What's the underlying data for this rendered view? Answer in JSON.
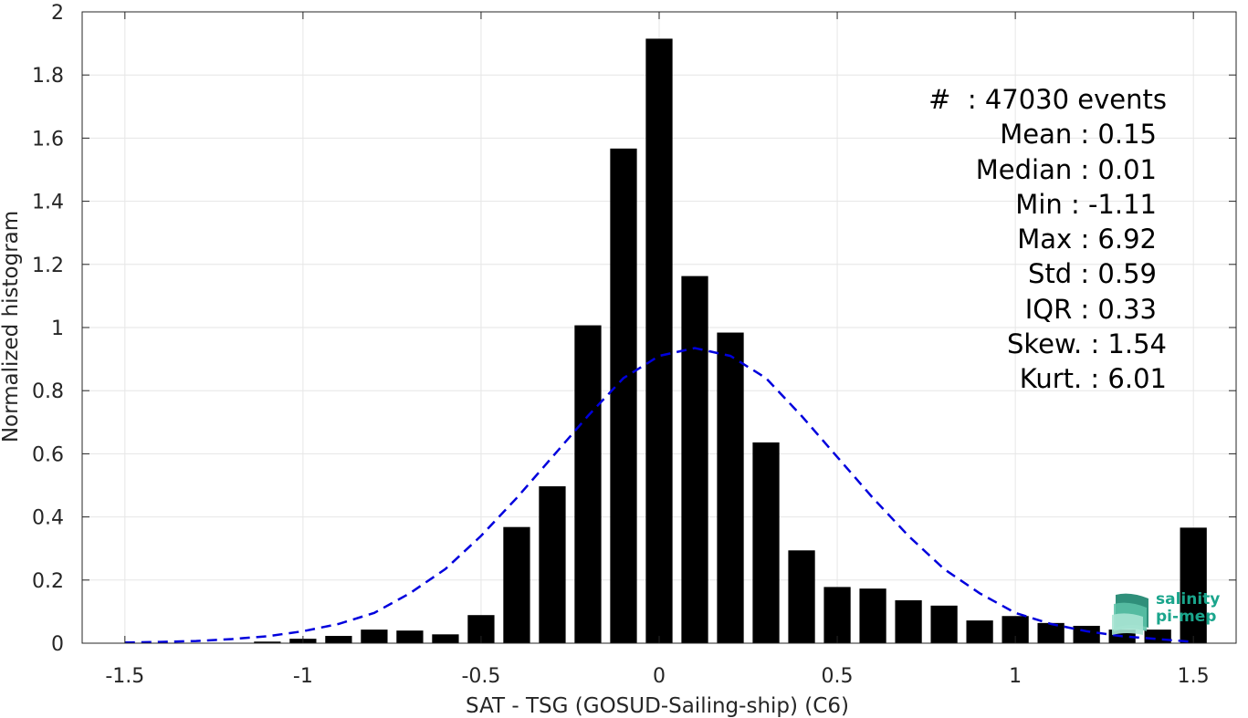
{
  "chart_data": {
    "type": "bar",
    "xlabel": "SAT - TSG (GOSUD-Sailing-ship) (C6)",
    "ylabel": "Normalized histogram",
    "xlim": [
      -1.62,
      1.62
    ],
    "ylim": [
      0,
      2
    ],
    "xticks": [
      -1.5,
      -1,
      -0.5,
      0,
      0.5,
      1,
      1.5
    ],
    "xtick_labels": [
      "-1.5",
      "-1",
      "-0.5",
      "0",
      "0.5",
      "1",
      "1.5"
    ],
    "yticks": [
      0,
      0.2,
      0.4,
      0.6,
      0.8,
      1,
      1.2,
      1.4,
      1.6,
      1.8,
      2
    ],
    "ytick_labels": [
      "0",
      "0.2",
      "0.4",
      "0.6",
      "0.8",
      "1",
      "1.2",
      "1.4",
      "1.6",
      "1.8",
      "2"
    ],
    "grid": true,
    "bar_width": 0.075,
    "x": [
      -1.1,
      -1.0,
      -0.9,
      -0.8,
      -0.7,
      -0.6,
      -0.5,
      -0.4,
      -0.3,
      -0.2,
      -0.1,
      0.0,
      0.1,
      0.2,
      0.3,
      0.4,
      0.5,
      0.6,
      0.7,
      0.8,
      0.9,
      1.0,
      1.1,
      1.2,
      1.3,
      1.4,
      1.5
    ],
    "values": [
      0.005,
      0.014,
      0.023,
      0.043,
      0.04,
      0.028,
      0.089,
      0.368,
      0.497,
      1.007,
      1.567,
      1.915,
      1.163,
      0.984,
      0.636,
      0.294,
      0.178,
      0.173,
      0.136,
      0.119,
      0.072,
      0.086,
      0.064,
      0.055,
      0.043,
      0.043,
      0.366
    ],
    "bar_color": "#000000",
    "fit_curve": {
      "style": "dashed",
      "color": "#0000dd",
      "x": [
        -1.5,
        -1.4,
        -1.3,
        -1.2,
        -1.1,
        -1.0,
        -0.9,
        -0.8,
        -0.7,
        -0.6,
        -0.5,
        -0.4,
        -0.3,
        -0.2,
        -0.1,
        0.0,
        0.1,
        0.2,
        0.3,
        0.4,
        0.5,
        0.6,
        0.7,
        0.8,
        0.9,
        1.0,
        1.1,
        1.2,
        1.3,
        1.4,
        1.5
      ],
      "y": [
        0.002,
        0.004,
        0.007,
        0.013,
        0.022,
        0.038,
        0.061,
        0.096,
        0.158,
        0.235,
        0.34,
        0.46,
        0.59,
        0.72,
        0.84,
        0.91,
        0.935,
        0.91,
        0.84,
        0.72,
        0.59,
        0.46,
        0.34,
        0.235,
        0.158,
        0.096,
        0.061,
        0.038,
        0.022,
        0.013,
        0.004
      ]
    }
  },
  "stats": {
    "events": "#  : 47030 events",
    "mean": "Mean : 0.15",
    "median": "Median : 0.01",
    "min": "Min : -1.11",
    "max": "Max : 6.92",
    "std": "Std : 0.59",
    "iqr": "IQR : 0.33",
    "skew": "Skew. : 1.54",
    "kurt": "Kurt. : 6.01"
  },
  "logo": {
    "line1": "salinity",
    "line2": "pi-mep",
    "color": "#1aa58c"
  }
}
